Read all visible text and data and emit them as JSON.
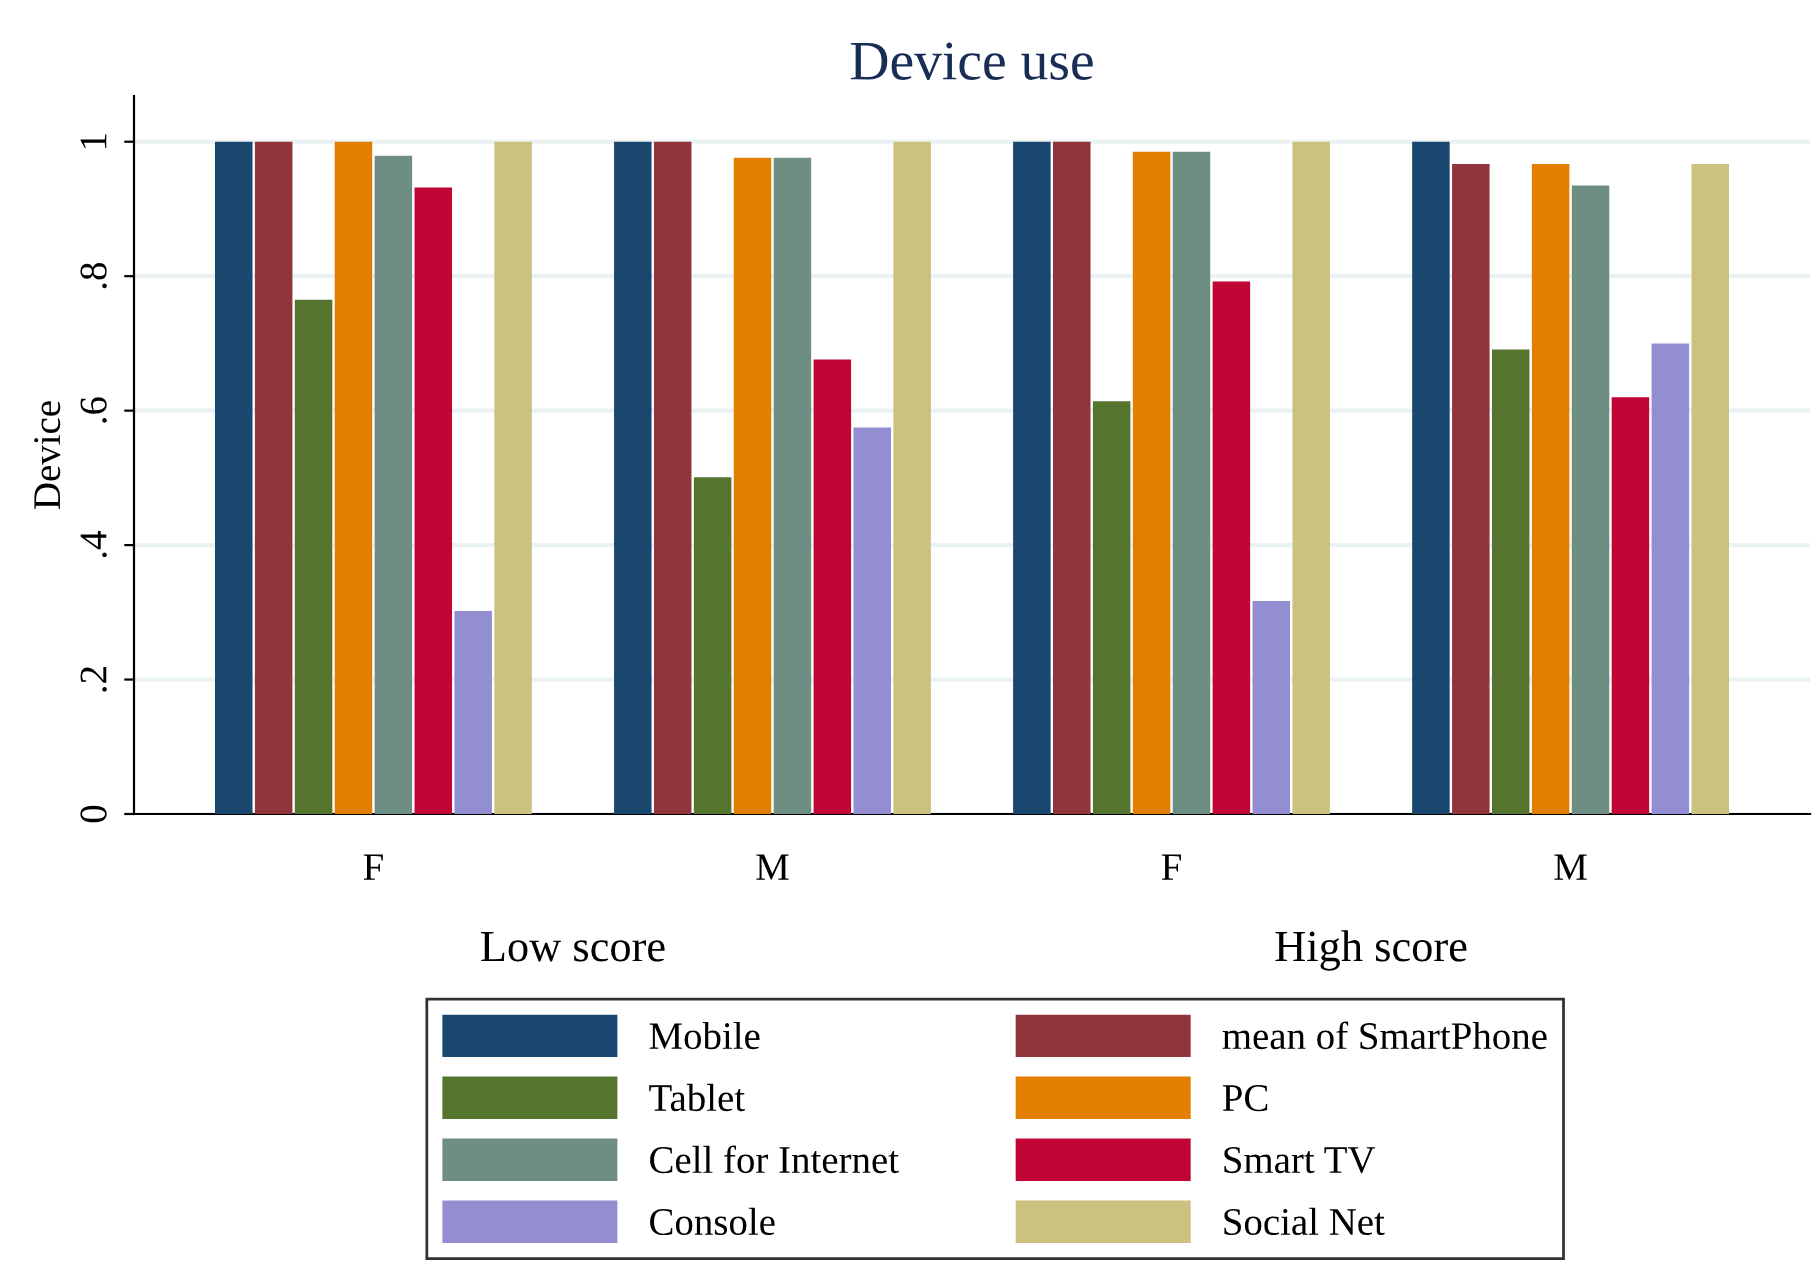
{
  "chart_data": {
    "type": "bar",
    "title": "Device use",
    "ylabel": "Device",
    "categories": [
      "F",
      "M",
      "F",
      "M"
    ],
    "annotations": [
      "Low score",
      "High score"
    ],
    "series": [
      {
        "name": "Mobile",
        "color": "#1a476f",
        "values": [
          1,
          1,
          1,
          1
        ]
      },
      {
        "name": "mean of SmartPhone",
        "color": "#90353b",
        "values": [
          1,
          1,
          1,
          0.967
        ]
      },
      {
        "name": "Tablet",
        "color": "#55752f",
        "values": [
          0.765,
          0.501,
          0.614,
          0.691
        ]
      },
      {
        "name": "PC",
        "color": "#e37e00",
        "values": [
          1,
          0.976,
          0.985,
          0.967
        ]
      },
      {
        "name": "Cell for Internet",
        "color": "#6e8e84",
        "values": [
          0.979,
          0.976,
          0.985,
          0.935
        ]
      },
      {
        "name": "Smart TV",
        "color": "#c10534",
        "values": [
          0.932,
          0.676,
          0.792,
          0.62
        ]
      },
      {
        "name": "Console",
        "color": "#938dd2",
        "values": [
          0.302,
          0.575,
          0.317,
          0.7
        ]
      },
      {
        "name": "Social Net",
        "color": "#cac27e",
        "values": [
          1,
          1,
          1,
          0.967
        ]
      }
    ],
    "ylim": [
      0,
      1.068
    ],
    "yticks": [
      0,
      {
        "value": 0.2,
        "label": ".2"
      },
      {
        "value": 0.4,
        "label": ".4"
      },
      {
        "value": 0.6,
        "label": ".6"
      },
      {
        "value": 0.8,
        "label": ".8"
      },
      1
    ],
    "grid": "y",
    "legend": "bottom"
  }
}
